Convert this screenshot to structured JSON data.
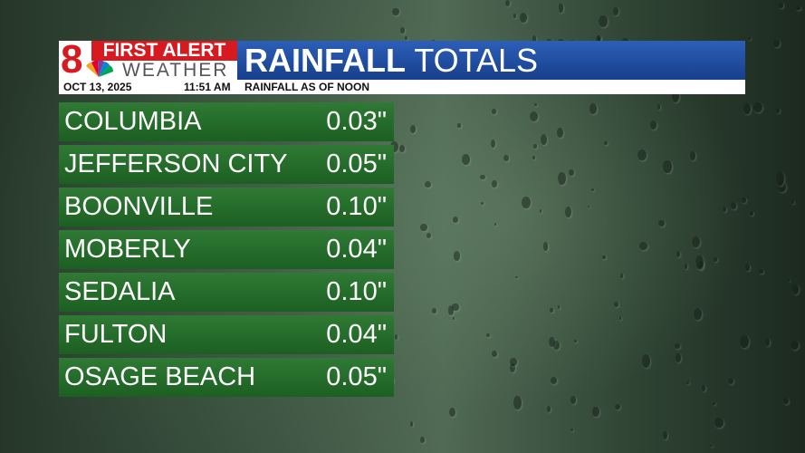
{
  "header": {
    "logo": {
      "number": "8",
      "line1": "FIRST ALERT",
      "line2": "WEATHER"
    },
    "title": {
      "bold": "RAINFALL",
      "light": "TOTALS"
    },
    "date": "OCT 13, 2025",
    "time": "11:51 AM",
    "subtitle": "RAINFALL AS OF NOON"
  },
  "table": {
    "rows": [
      [
        "COLUMBIA",
        "0.03\""
      ],
      [
        "JEFFERSON CITY",
        "0.05\""
      ],
      [
        "BOONVILLE",
        "0.10\""
      ],
      [
        "MOBERLY",
        "0.04\""
      ],
      [
        "SEDALIA",
        "0.10\""
      ],
      [
        "FULTON",
        "0.04\""
      ],
      [
        "OSAGE BEACH",
        "0.05\""
      ]
    ]
  }
}
